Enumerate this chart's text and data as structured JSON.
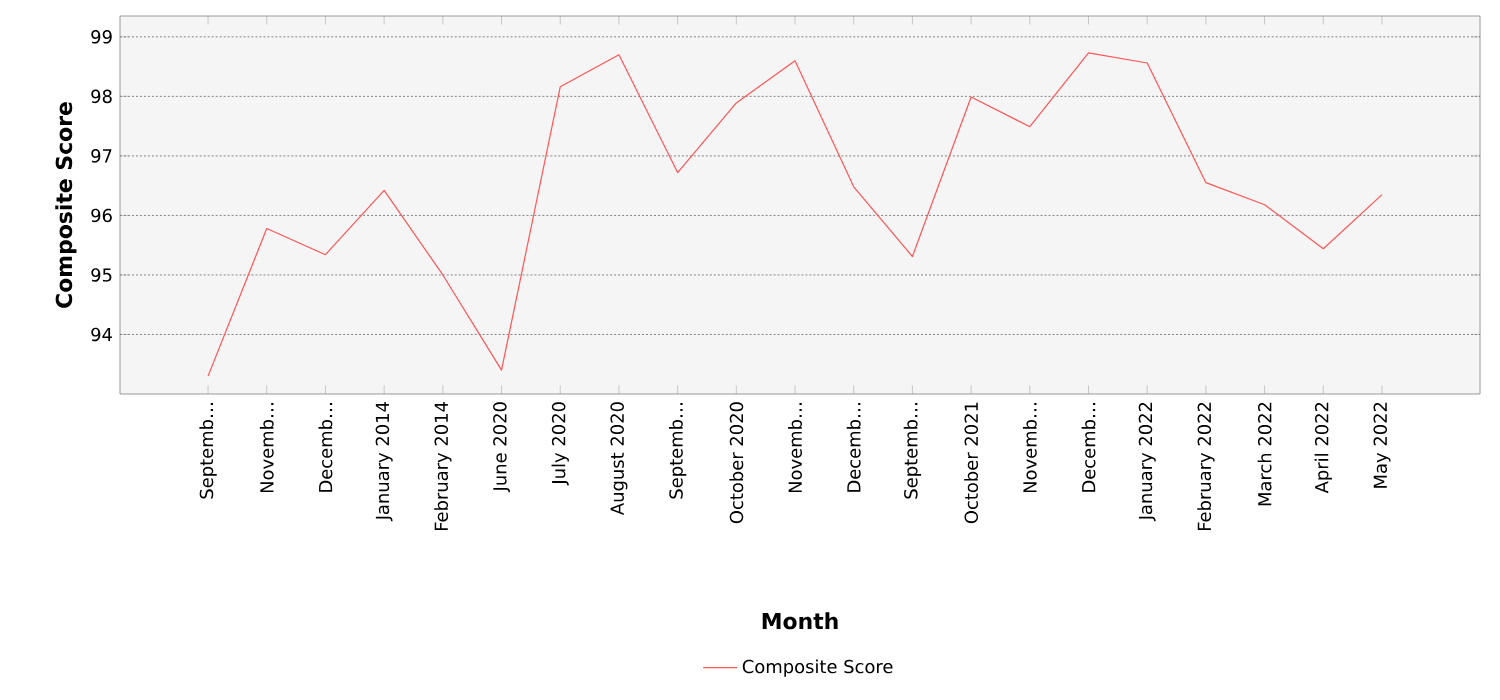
{
  "chart_data": {
    "type": "line",
    "xlabel": "Month",
    "ylabel": "Composite Score",
    "categories": [
      "Septemb…",
      "Novemb…",
      "Decemb…",
      "January 2014",
      "February 2014",
      "June 2020",
      "July 2020",
      "August 2020",
      "Septemb…",
      "October 2020",
      "Novemb…",
      "Decemb…",
      "Septemb…",
      "October 2021",
      "Novemb…",
      "Decemb…",
      "January 2022",
      "February 2022",
      "March 2022",
      "April 2022",
      "May 2022"
    ],
    "series": [
      {
        "name": "Composite Score",
        "color": "#ff5555",
        "values": [
          93.3,
          95.78,
          95.34,
          96.42,
          95.0,
          93.4,
          98.16,
          98.7,
          96.72,
          97.89,
          98.6,
          96.48,
          95.31,
          97.99,
          97.49,
          98.73,
          98.56,
          96.55,
          96.18,
          95.44,
          96.35
        ]
      }
    ],
    "ylim": [
      93.0,
      99.35
    ],
    "yticks": [
      94,
      95,
      96,
      97,
      98,
      99
    ],
    "grid": "y",
    "legend": "bottom",
    "marker": "none",
    "line_style": "solid"
  }
}
